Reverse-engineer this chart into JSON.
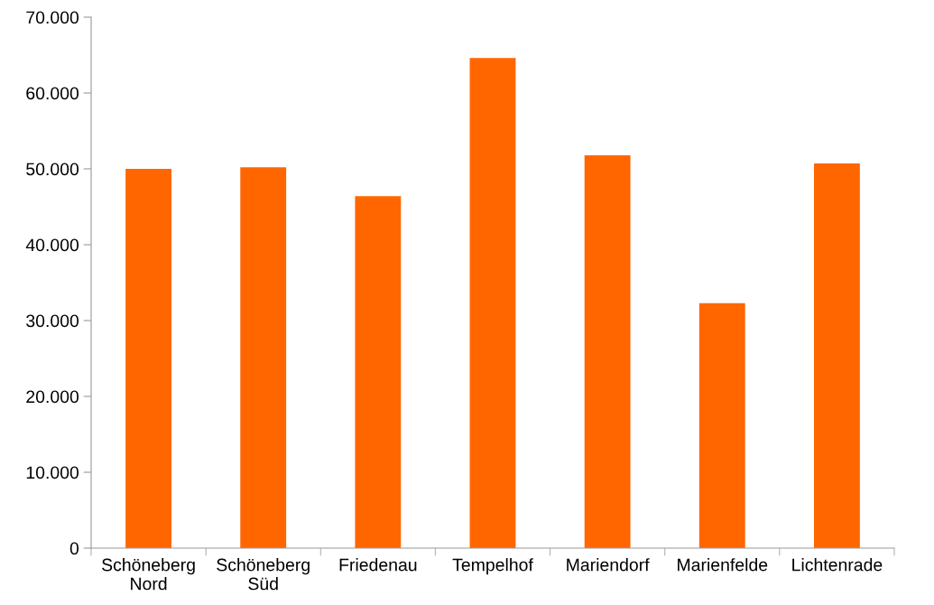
{
  "chart_data": {
    "type": "bar",
    "categories": [
      "Schöneberg\nNord",
      "Schöneberg\nSüd",
      "Friedenau",
      "Tempelhof",
      "Mariendorf",
      "Marienfelde",
      "Lichtenrade"
    ],
    "values": [
      50000,
      50200,
      46400,
      64600,
      51800,
      32300,
      50700
    ],
    "color": "#ff6600",
    "ylim": [
      0,
      70000
    ],
    "yticks": [
      {
        "value": 0,
        "label": "0"
      },
      {
        "value": 10000,
        "label": "10.000"
      },
      {
        "value": 20000,
        "label": "20.000"
      },
      {
        "value": 30000,
        "label": "30.000"
      },
      {
        "value": 40000,
        "label": "40.000"
      },
      {
        "value": 50000,
        "label": "50.000"
      },
      {
        "value": 60000,
        "label": "60.000"
      },
      {
        "value": 70000,
        "label": "70.000"
      }
    ],
    "grid": false
  }
}
